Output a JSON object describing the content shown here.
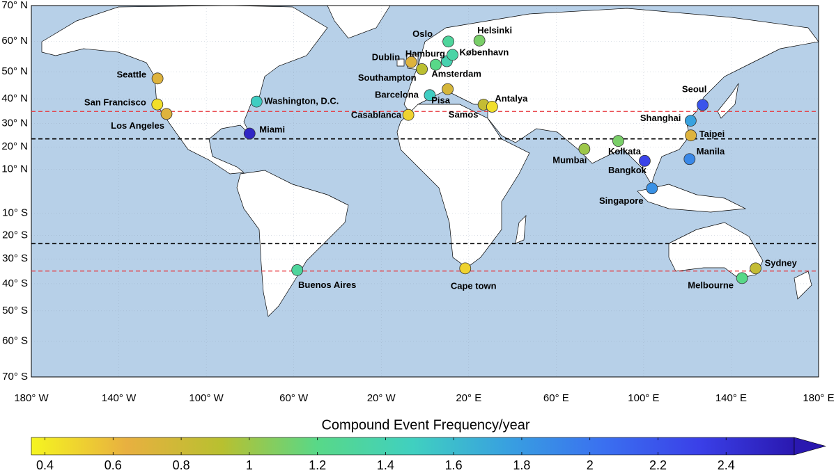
{
  "chart_data": {
    "type": "map",
    "projection": "miller",
    "xlim": [
      -180,
      180
    ],
    "ylim": [
      -70,
      70
    ],
    "xticks": [
      {
        "value": -180,
        "label": "180° W"
      },
      {
        "value": -140,
        "label": "140° W"
      },
      {
        "value": -100,
        "label": "100° W"
      },
      {
        "value": -60,
        "label": "60° W"
      },
      {
        "value": -20,
        "label": "20° W"
      },
      {
        "value": 20,
        "label": "20° E"
      },
      {
        "value": 60,
        "label": "60° E"
      },
      {
        "value": 100,
        "label": "100° E"
      },
      {
        "value": 140,
        "label": "140° E"
      },
      {
        "value": 180,
        "label": "180° E"
      }
    ],
    "yticks": [
      {
        "value": 70,
        "label": "70° N"
      },
      {
        "value": 60,
        "label": "60° N"
      },
      {
        "value": 50,
        "label": "50° N"
      },
      {
        "value": 40,
        "label": "40° N"
      },
      {
        "value": 30,
        "label": "30° N"
      },
      {
        "value": 20,
        "label": "20° N"
      },
      {
        "value": 10,
        "label": "10° N"
      },
      {
        "value": -10,
        "label": "10° S"
      },
      {
        "value": -20,
        "label": "20° S"
      },
      {
        "value": -30,
        "label": "30° S"
      },
      {
        "value": -40,
        "label": "40° S"
      },
      {
        "value": -50,
        "label": "50° S"
      },
      {
        "value": -60,
        "label": "60° S"
      },
      {
        "value": -70,
        "label": "70° S"
      }
    ],
    "grid": true,
    "reference_lines": [
      {
        "lat": 35,
        "color": "#e8343a"
      },
      {
        "lat": -35,
        "color": "#e8343a"
      },
      {
        "lat": 23.5,
        "color": "#000000"
      },
      {
        "lat": -23.5,
        "color": "#000000"
      }
    ],
    "points": [
      {
        "name": "Seattle",
        "lon": -122.3,
        "lat": 47.6,
        "value": 0.7
      },
      {
        "name": "San Francisco",
        "lon": -122.4,
        "lat": 37.8,
        "value": 0.45
      },
      {
        "name": "Los Angeles",
        "lon": -118.2,
        "lat": 34.0,
        "value": 0.7
      },
      {
        "name": "Washington, D.C.",
        "lon": -77.0,
        "lat": 38.9,
        "value": 1.5
      },
      {
        "name": "Miami",
        "lon": -80.2,
        "lat": 25.8,
        "value": 2.5
      },
      {
        "name": "Oslo",
        "lon": 10.7,
        "lat": 59.9,
        "value": 1.3
      },
      {
        "name": "Helsinki",
        "lon": 24.9,
        "lat": 60.2,
        "value": 1.1
      },
      {
        "name": "Dublin",
        "lon": -6.3,
        "lat": 53.3,
        "value": 0.7
      },
      {
        "name": "Hamburg",
        "lon": 10.0,
        "lat": 53.6,
        "value": 1.4
      },
      {
        "name": "København",
        "lon": 12.6,
        "lat": 55.7,
        "value": 1.35
      },
      {
        "name": "Southampton",
        "lon": -1.4,
        "lat": 50.9,
        "value": 0.9
      },
      {
        "name": "Amsterdam",
        "lon": 4.9,
        "lat": 52.4,
        "value": 1.2
      },
      {
        "name": "Barcelona",
        "lon": 2.2,
        "lat": 41.4,
        "value": 1.5
      },
      {
        "name": "Pisa",
        "lon": 10.4,
        "lat": 43.7,
        "value": 0.75
      },
      {
        "name": "Samos",
        "lon": 26.8,
        "lat": 37.7,
        "value": 0.85
      },
      {
        "name": "Antalya",
        "lon": 30.7,
        "lat": 36.9,
        "value": 0.45
      },
      {
        "name": "Casablanca",
        "lon": -7.6,
        "lat": 33.6,
        "value": 0.5
      },
      {
        "name": "Seoul",
        "lon": 127.0,
        "lat": 37.6,
        "value": 2.2
      },
      {
        "name": "Shanghai",
        "lon": 121.5,
        "lat": 31.2,
        "value": 1.75
      },
      {
        "name": "Taipei",
        "lon": 121.6,
        "lat": 25.0,
        "value": 0.7
      },
      {
        "name": "Manila",
        "lon": 121.0,
        "lat": 14.6,
        "value": 1.9
      },
      {
        "name": "Bangkok",
        "lon": 100.5,
        "lat": 13.8,
        "value": 2.3
      },
      {
        "name": "Kolkata",
        "lon": 88.4,
        "lat": 22.6,
        "value": 1.1
      },
      {
        "name": "Mumbai",
        "lon": 72.9,
        "lat": 19.1,
        "value": 1.0
      },
      {
        "name": "Singapore",
        "lon": 103.8,
        "lat": 1.35,
        "value": 1.85
      },
      {
        "name": "Buenos Aires",
        "lon": -58.4,
        "lat": -34.6,
        "value": 1.3
      },
      {
        "name": "Cape town",
        "lon": 18.4,
        "lat": -33.9,
        "value": 0.5
      },
      {
        "name": "Sydney",
        "lon": 151.2,
        "lat": -33.9,
        "value": 0.85
      },
      {
        "name": "Melbourne",
        "lon": 145.0,
        "lat": -37.8,
        "value": 1.2
      }
    ],
    "colorbar": {
      "title": "Compound Event Frequency/year",
      "clim": [
        0.36,
        2.6
      ],
      "ticks": [
        0.4,
        0.6,
        0.8,
        1,
        1.2,
        1.4,
        1.6,
        1.8,
        2,
        2.2,
        2.4
      ],
      "colormap": [
        "#f5f520",
        "#e8b040",
        "#b8c030",
        "#58d888",
        "#40d0c0",
        "#38a0e0",
        "#3a70f0",
        "#3a40e8",
        "#2a18b0"
      ]
    }
  }
}
